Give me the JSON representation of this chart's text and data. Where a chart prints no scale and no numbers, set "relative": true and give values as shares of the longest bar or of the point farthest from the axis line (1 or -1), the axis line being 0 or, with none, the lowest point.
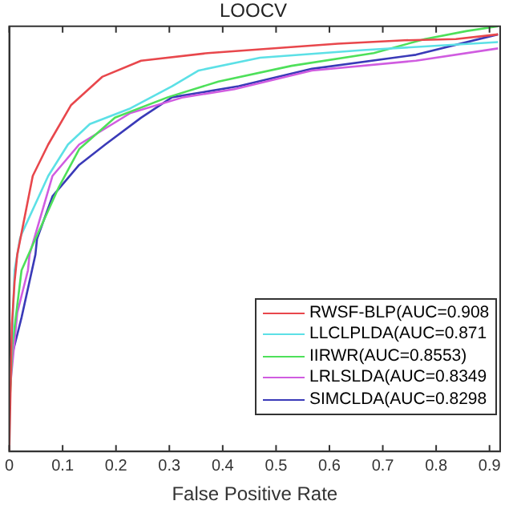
{
  "chart_data": {
    "type": "line",
    "title": "LOOCV",
    "xlabel": "False Positive Rate",
    "relative": true,
    "xlim": [
      0,
      0.92
    ],
    "xticks": [
      0,
      0.1,
      0.2,
      0.3,
      0.4,
      0.5,
      0.6,
      0.7,
      0.8,
      0.9
    ],
    "tick_labels": "x",
    "grid": false,
    "legend": "bottom right",
    "marker": "none",
    "line_style": "solid",
    "series": [
      {
        "name": "RWSF-BLP(AUC=0.908",
        "color": "#e8474c",
        "x": [
          0,
          0.005,
          0.01,
          0.015,
          0.044,
          0.073,
          0.116,
          0.174,
          0.247,
          0.372,
          0.616,
          0.741,
          0.837,
          0.916
        ],
        "values": [
          0,
          0.3,
          0.4,
          0.463,
          0.648,
          0.722,
          0.815,
          0.881,
          0.919,
          0.937,
          0.959,
          0.967,
          0.97,
          0.981
        ]
      },
      {
        "name": "LLCLPLDA(AUC=0.871",
        "color": "#5ce0e6",
        "x": [
          0,
          0.01,
          0.02,
          0.023,
          0.073,
          0.11,
          0.151,
          0.227,
          0.305,
          0.355,
          0.47,
          0.663,
          0.916
        ],
        "values": [
          0.093,
          0.426,
          0.5,
          0.511,
          0.648,
          0.722,
          0.77,
          0.807,
          0.859,
          0.896,
          0.926,
          0.944,
          0.963
        ]
      },
      {
        "name": "IIRWR(AUC=0.8553)",
        "color": "#4ee05a",
        "x": [
          0,
          0.006,
          0.023,
          0.049,
          0.093,
          0.131,
          0.198,
          0.297,
          0.392,
          0.529,
          0.683,
          0.779,
          0.858,
          0.916
        ],
        "values": [
          0.09,
          0.252,
          0.426,
          0.5,
          0.622,
          0.711,
          0.785,
          0.833,
          0.87,
          0.907,
          0.937,
          0.97,
          0.989,
          1
        ]
      },
      {
        "name": "LRLSLDA(AUC=0.8349",
        "color": "#d05ce0",
        "x": [
          0,
          0.015,
          0.035,
          0.038,
          0.081,
          0.131,
          0.227,
          0.326,
          0.422,
          0.567,
          0.762,
          0.916
        ],
        "values": [
          0.13,
          0.326,
          0.426,
          0.463,
          0.648,
          0.722,
          0.796,
          0.833,
          0.852,
          0.896,
          0.919,
          0.948
        ]
      },
      {
        "name": "SIMCLDA(AUC=0.8298",
        "color": "#3a3ab8",
        "x": [
          0.006,
          0.023,
          0.049,
          0.052,
          0.081,
          0.131,
          0.18,
          0.247,
          0.305,
          0.43,
          0.567,
          0.762,
          0.916
        ],
        "values": [
          0.23,
          0.315,
          0.463,
          0.5,
          0.6,
          0.674,
          0.722,
          0.785,
          0.833,
          0.859,
          0.9,
          0.933,
          0.981
        ]
      }
    ]
  }
}
